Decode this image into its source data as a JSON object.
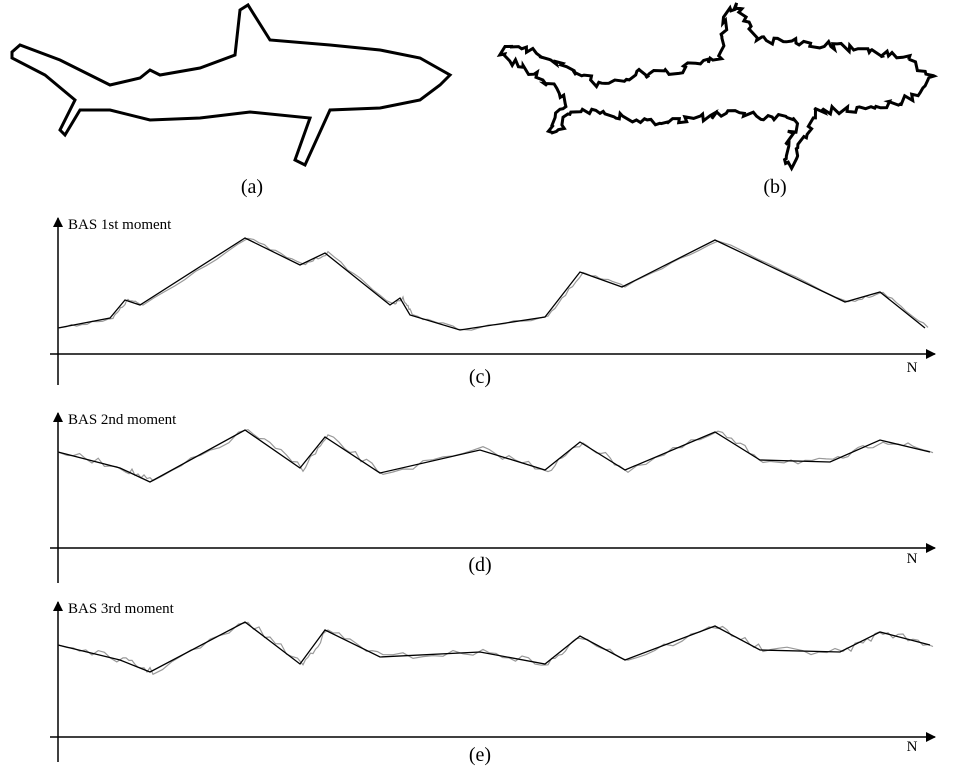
{
  "panels": [
    {
      "label": "(a)"
    },
    {
      "label": "(b)"
    }
  ],
  "plots": [
    {
      "y_label": "BAS 1st moment",
      "x_label": "N",
      "label": "(c)"
    },
    {
      "y_label": "BAS 2nd moment",
      "x_label": "N",
      "label": "(d)"
    },
    {
      "y_label": "BAS 3rd moment",
      "x_label": "N",
      "label": "(e)"
    }
  ]
}
